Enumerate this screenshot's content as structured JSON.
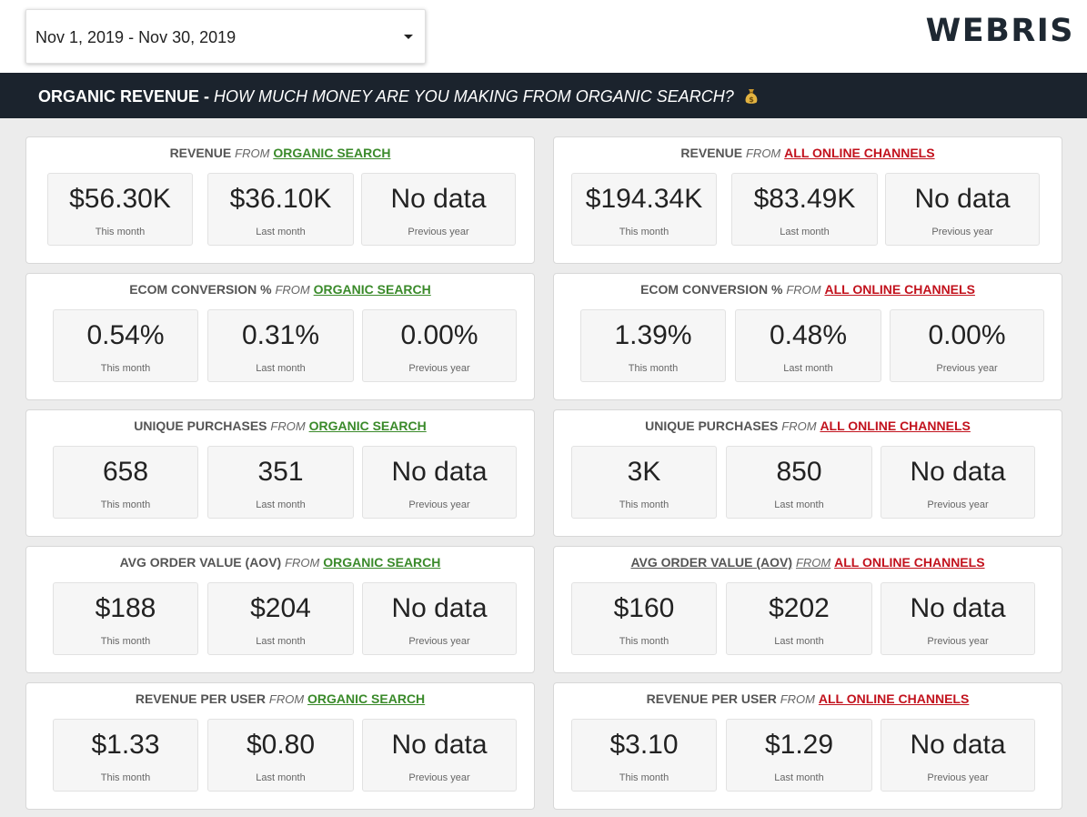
{
  "date_range": {
    "value": "Nov 1, 2019 - Nov 30, 2019"
  },
  "logo": {
    "text": "WEBRIS"
  },
  "banner": {
    "title": "ORGANIC REVENUE - ",
    "subtitle": "HOW MUCH MONEY ARE YOU MAKING FROM ORGANIC SEARCH?",
    "icon": "money-bag-icon"
  },
  "labels": {
    "from": "FROM",
    "organic": "ORGANIC SEARCH",
    "all": "ALL ONLINE CHANNELS",
    "this_month": "This month",
    "last_month": "Last month",
    "previous_year": "Previous year"
  },
  "colors": {
    "organic": "#3a8a2a",
    "all_channels": "#c2121d",
    "banner_bg": "#1b232d"
  },
  "metrics": [
    {
      "name": "REVENUE",
      "organic": {
        "this_month": "$56.30K",
        "last_month": "$36.10K",
        "previous_year": "No data"
      },
      "all": {
        "this_month": "$194.34K",
        "last_month": "$83.49K",
        "previous_year": "No data"
      }
    },
    {
      "name": "ECOM CONVERSION %",
      "organic": {
        "this_month": "0.54%",
        "last_month": "0.31%",
        "previous_year": "0.00%"
      },
      "all": {
        "this_month": "1.39%",
        "last_month": "0.48%",
        "previous_year": "0.00%"
      }
    },
    {
      "name": "UNIQUE PURCHASES",
      "organic": {
        "this_month": "658",
        "last_month": "351",
        "previous_year": "No data"
      },
      "all": {
        "this_month": "3K",
        "last_month": "850",
        "previous_year": "No data"
      }
    },
    {
      "name": "AVG ORDER VALUE (AOV)",
      "organic": {
        "this_month": "$188",
        "last_month": "$204",
        "previous_year": "No data"
      },
      "all": {
        "this_month": "$160",
        "last_month": "$202",
        "previous_year": "No data"
      }
    },
    {
      "name": "REVENUE PER USER",
      "organic": {
        "this_month": "$1.33",
        "last_month": "$0.80",
        "previous_year": "No data"
      },
      "all": {
        "this_month": "$3.10",
        "last_month": "$1.29",
        "previous_year": "No data"
      }
    }
  ]
}
